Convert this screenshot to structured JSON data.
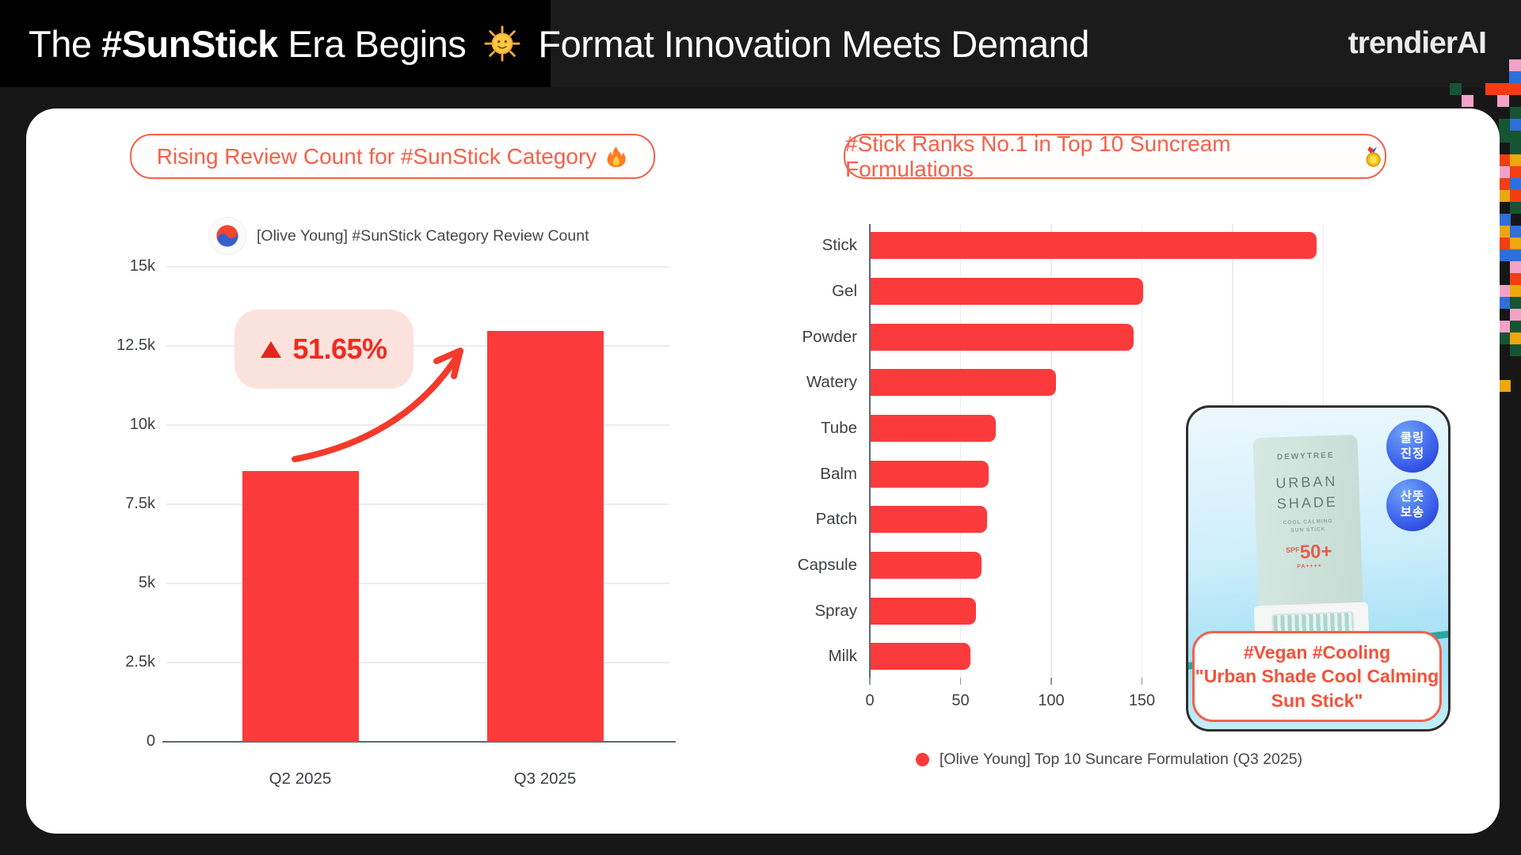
{
  "header": {
    "t1": "The ",
    "t2": "#SunStick",
    "t3": " Era Begins ",
    "t4": " Format Innovation Meets Demand",
    "logo": "trendierAI",
    "sun_icon": "sun-with-face-icon"
  },
  "left_chart": {
    "pill_label": "Rising Review Count for #SunStick Category",
    "pill_icon": "fire-icon",
    "legend_label": "[Olive Young] #SunStick Category Review Count",
    "legend_icon": "taegeuk-icon",
    "growth_badge": "51.65%"
  },
  "right_chart": {
    "pill_label": "#Stick Ranks No.1 in Top 10 Suncream Formulations",
    "pill_icon": "gold-medal-icon",
    "legend_label": "[Olive Young] Top 10 Suncare Formulation (Q3 2025)"
  },
  "chart_data": [
    {
      "type": "bar",
      "title": "Rising Review Count for #SunStick Category",
      "categories": [
        "Q2 2025",
        "Q3 2025"
      ],
      "values": [
        8560,
        12980
      ],
      "series_name": "[Olive Young] #SunStick Category Review Count",
      "growth_label": "51.65%",
      "ylabel": "",
      "ylim": [
        0,
        15000
      ],
      "yticks": [
        [
          0,
          "0"
        ],
        [
          2500,
          "2.5k"
        ],
        [
          5000,
          "5k"
        ],
        [
          7500,
          "7.5k"
        ],
        [
          10000,
          "10k"
        ],
        [
          12500,
          "12.5k"
        ],
        [
          15000,
          "15k"
        ]
      ],
      "grid": "horizontal",
      "bar_color": "#FB3B3B"
    },
    {
      "type": "bar-horizontal",
      "title": "#Stick Ranks No.1 in Top 10 Suncream Formulations",
      "categories": [
        "Stick",
        "Gel",
        "Powder",
        "Watery",
        "Tube",
        "Balm",
        "Patch",
        "Capsule",
        "Spray",
        "Milk"
      ],
      "values": [
        246,
        150,
        145,
        102,
        69,
        65,
        64,
        61,
        58,
        55
      ],
      "series_name": "[Olive Young] Top 10 Suncare Formulation (Q3 2025)",
      "xlim": [
        0,
        250
      ],
      "xticks": [
        [
          0,
          "0"
        ],
        [
          50,
          "50"
        ],
        [
          100,
          "100"
        ],
        [
          150,
          "150"
        ]
      ],
      "grid": "vertical",
      "bar_color": "#FB3B3B"
    }
  ],
  "product_card": {
    "badge1_line1": "쿨링",
    "badge1_line2": "진정",
    "badge2_line1": "산뜻",
    "badge2_line2": "보송",
    "stick_brand": "DEWYTREE",
    "stick_name1": "URBAN",
    "stick_name2": "SHADE",
    "stick_sub1": "COOL CALMING",
    "stick_sub2": "SUN STICK",
    "spf_prefix": "SPF",
    "spf_value": "50+",
    "spf_pa": "PA++++",
    "caption_line1": "#Vegan #Cooling",
    "caption_line2": "\"Urban Shade Cool Calming",
    "caption_line3": "Sun Stick\""
  },
  "colors": {
    "bar_red": "#FB3B3B",
    "accent_salmon": "#F4604A",
    "growth_red": "#EF2B1E",
    "growth_bg": "#FCE2DD",
    "axis": "#5E6876",
    "gridline": "#ececec",
    "label": "#3d4043",
    "card_bg": "#ffffff",
    "page_bg": "#171717",
    "header_black": "#000000",
    "badge_blue": "#2b46e0",
    "taegeuk_red": "#f44530",
    "taegeuk_blue": "#3660c8"
  },
  "mosaic": {
    "palette": {
      "R": "#F23E12",
      "P": "#F2A2C7",
      "B": "#2E6FD9",
      "G": "#175434",
      "Y": "#EDA70F"
    },
    "cells": [
      [
        1905,
        75,
        "P"
      ],
      [
        1905,
        90,
        "B"
      ],
      [
        1830,
        105,
        "G"
      ],
      [
        1875,
        105,
        "R"
      ],
      [
        1890,
        105,
        "R"
      ],
      [
        1905,
        105,
        "R"
      ],
      [
        1845,
        120,
        "P"
      ],
      [
        1890,
        120,
        "P"
      ],
      [
        1906,
        135,
        "G"
      ],
      [
        1892,
        150,
        "G"
      ],
      [
        1906,
        150,
        "B"
      ],
      [
        1892,
        165,
        "G"
      ],
      [
        1906,
        165,
        "G"
      ],
      [
        1906,
        180,
        "G"
      ],
      [
        1892,
        195,
        "R"
      ],
      [
        1906,
        195,
        "Y"
      ],
      [
        1892,
        210,
        "P"
      ],
      [
        1906,
        210,
        "R"
      ],
      [
        1892,
        225,
        "R"
      ],
      [
        1906,
        225,
        "B"
      ],
      [
        1892,
        240,
        "Y"
      ],
      [
        1906,
        240,
        "R"
      ],
      [
        1906,
        255,
        "G"
      ],
      [
        1892,
        270,
        "B"
      ],
      [
        1892,
        285,
        "Y"
      ],
      [
        1906,
        285,
        "B"
      ],
      [
        1892,
        300,
        "R"
      ],
      [
        1906,
        300,
        "Y"
      ],
      [
        1892,
        315,
        "B"
      ],
      [
        1906,
        315,
        "B"
      ],
      [
        1906,
        330,
        "P"
      ],
      [
        1906,
        345,
        "R"
      ],
      [
        1892,
        360,
        "P"
      ],
      [
        1906,
        360,
        "Y"
      ],
      [
        1892,
        375,
        "B"
      ],
      [
        1906,
        375,
        "G"
      ],
      [
        1906,
        390,
        "P"
      ],
      [
        1892,
        405,
        "P"
      ],
      [
        1906,
        405,
        "G"
      ],
      [
        1892,
        420,
        "G"
      ],
      [
        1906,
        420,
        "Y"
      ],
      [
        1906,
        435,
        "G"
      ],
      [
        1892,
        480,
        "Y"
      ]
    ]
  }
}
